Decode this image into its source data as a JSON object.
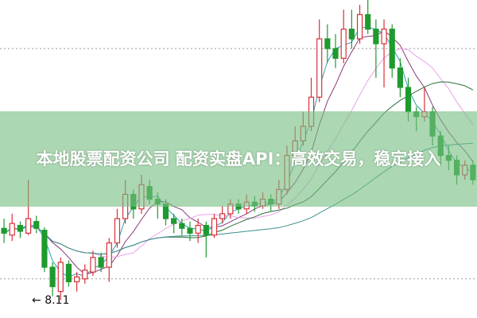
{
  "banner": {
    "text": "本地股票配资公司 配资实盘API：高效交易，稳定接入"
  },
  "chart_data": {
    "type": "candlestick",
    "title": "",
    "low_annotation": "8.11",
    "colors": {
      "up": "#d9303a",
      "down": "#1e9a2e",
      "ma_lines": [
        "#2aa3b0",
        "#8a3a7a",
        "#e9a2e9",
        "#2e6e3a",
        "#3a9090"
      ],
      "banner": "#78be82"
    },
    "grid": false,
    "candles": [
      [
        8.85,
        8.95,
        8.7,
        8.8
      ],
      [
        8.78,
        9.0,
        8.72,
        8.9
      ],
      [
        8.88,
        8.92,
        8.75,
        8.82
      ],
      [
        8.8,
        9.35,
        8.78,
        8.95
      ],
      [
        8.92,
        8.98,
        8.8,
        8.85
      ],
      [
        8.83,
        8.86,
        8.4,
        8.45
      ],
      [
        8.45,
        8.5,
        8.15,
        8.25
      ],
      [
        8.2,
        8.55,
        8.11,
        8.5
      ],
      [
        8.48,
        8.52,
        8.25,
        8.3
      ],
      [
        8.3,
        8.4,
        8.2,
        8.35
      ],
      [
        8.33,
        8.48,
        8.28,
        8.42
      ],
      [
        8.4,
        8.62,
        8.36,
        8.55
      ],
      [
        8.55,
        8.6,
        8.4,
        8.45
      ],
      [
        8.45,
        8.75,
        8.3,
        8.7
      ],
      [
        8.7,
        9.05,
        8.65,
        8.95
      ],
      [
        8.95,
        9.35,
        8.9,
        9.2
      ],
      [
        9.2,
        9.25,
        8.95,
        9.05
      ],
      [
        9.05,
        9.4,
        9.0,
        9.3
      ],
      [
        9.28,
        9.35,
        9.1,
        9.15
      ],
      [
        9.15,
        9.22,
        8.95,
        9.1
      ],
      [
        9.1,
        9.15,
        8.88,
        8.95
      ],
      [
        8.95,
        9.0,
        8.8,
        8.9
      ],
      [
        8.9,
        8.95,
        8.78,
        8.85
      ],
      [
        8.85,
        8.92,
        8.72,
        8.8
      ],
      [
        8.8,
        8.95,
        8.7,
        8.88
      ],
      [
        8.88,
        8.92,
        8.55,
        8.78
      ],
      [
        8.78,
        9.0,
        8.75,
        8.95
      ],
      [
        8.95,
        9.08,
        8.9,
        9.0
      ],
      [
        9.0,
        9.15,
        8.95,
        9.1
      ],
      [
        9.1,
        9.15,
        9.0,
        9.05
      ],
      [
        9.05,
        9.2,
        9.0,
        9.12
      ],
      [
        9.12,
        9.18,
        9.02,
        9.08
      ],
      [
        9.08,
        9.22,
        9.05,
        9.15
      ],
      [
        9.15,
        9.2,
        9.03,
        9.1
      ],
      [
        9.1,
        9.35,
        9.05,
        9.25
      ],
      [
        9.25,
        9.7,
        9.2,
        9.6
      ],
      [
        9.6,
        9.9,
        9.55,
        9.75
      ],
      [
        9.75,
        10.05,
        9.7,
        9.9
      ],
      [
        9.9,
        10.4,
        9.85,
        10.2
      ],
      [
        10.2,
        11.0,
        10.15,
        10.8
      ],
      [
        10.8,
        10.95,
        10.55,
        10.7
      ],
      [
        10.7,
        10.85,
        10.5,
        10.6
      ],
      [
        10.6,
        11.1,
        10.55,
        10.9
      ],
      [
        10.9,
        11.1,
        10.7,
        10.8
      ],
      [
        10.8,
        11.15,
        10.75,
        11.05
      ],
      [
        11.05,
        11.2,
        10.85,
        10.9
      ],
      [
        10.9,
        11.0,
        10.4,
        10.75
      ],
      [
        10.75,
        11.0,
        10.3,
        10.9
      ],
      [
        10.9,
        10.95,
        10.4,
        10.5
      ],
      [
        10.5,
        10.6,
        10.2,
        10.3
      ],
      [
        10.3,
        10.4,
        9.95,
        10.05
      ],
      [
        10.05,
        10.1,
        9.85,
        10.0
      ],
      [
        10.0,
        10.3,
        9.95,
        10.05
      ],
      [
        10.05,
        10.1,
        9.7,
        9.8
      ],
      [
        9.8,
        9.85,
        9.5,
        9.6
      ],
      [
        9.6,
        9.7,
        9.45,
        9.55
      ],
      [
        9.55,
        9.6,
        9.3,
        9.4
      ],
      [
        9.4,
        9.55,
        9.35,
        9.5
      ],
      [
        9.5,
        9.55,
        9.3,
        9.35
      ]
    ],
    "candle_format": [
      "open",
      "high",
      "low",
      "close"
    ],
    "reference_lines": [
      10.7,
      8.33
    ]
  }
}
